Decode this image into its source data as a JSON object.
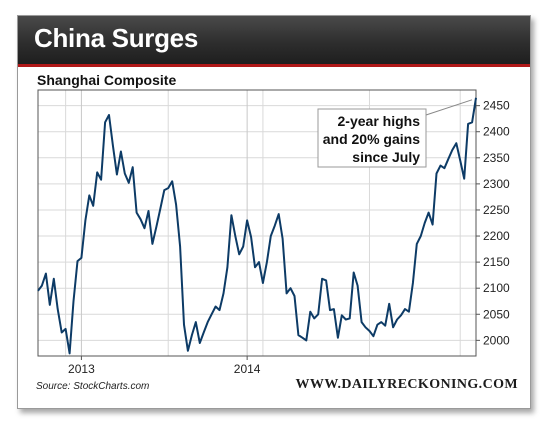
{
  "header": {
    "title": "China Surges",
    "accent_color": "#b01818"
  },
  "footer": {
    "source": "Source: StockCharts.com",
    "brand": "WWW.DAILYRECKONING.COM"
  },
  "chart_data": {
    "type": "line",
    "title": "Shanghai Composite",
    "xlabel": "",
    "ylabel": "",
    "x_tick_labels": [
      "2013",
      "2014"
    ],
    "y_ticks": [
      2000,
      2050,
      2100,
      2150,
      2200,
      2250,
      2300,
      2350,
      2400,
      2450
    ],
    "ylim": [
      1970,
      2480
    ],
    "grid": true,
    "line_color": "#0d3b66",
    "annotation": {
      "lines": [
        "2-year highs",
        "and 20% gains",
        "since July"
      ]
    },
    "series": [
      {
        "values": [
          2095,
          2105,
          2128,
          2068,
          2118,
          2060,
          2015,
          2022,
          1975,
          2075,
          2152,
          2158,
          2230,
          2278,
          2258,
          2322,
          2308,
          2418,
          2432,
          2372,
          2318,
          2362,
          2320,
          2302,
          2332,
          2245,
          2232,
          2215,
          2248,
          2185,
          2218,
          2252,
          2288,
          2292,
          2305,
          2260,
          2180,
          2030,
          1980,
          2010,
          2035,
          1995,
          2015,
          2035,
          2050,
          2065,
          2058,
          2090,
          2140,
          2240,
          2200,
          2165,
          2180,
          2230,
          2198,
          2140,
          2150,
          2110,
          2150,
          2200,
          2220,
          2242,
          2195,
          2090,
          2100,
          2085,
          2010,
          2005,
          2000,
          2055,
          2042,
          2050,
          2118,
          2115,
          2058,
          2060,
          2005,
          2048,
          2040,
          2042,
          2130,
          2105,
          2035,
          2025,
          2018,
          2008,
          2030,
          2035,
          2028,
          2070,
          2025,
          2040,
          2048,
          2060,
          2055,
          2110,
          2185,
          2200,
          2225,
          2245,
          2222,
          2320,
          2335,
          2330,
          2348,
          2365,
          2378,
          2345,
          2310,
          2415,
          2418,
          2465
        ]
      }
    ]
  }
}
